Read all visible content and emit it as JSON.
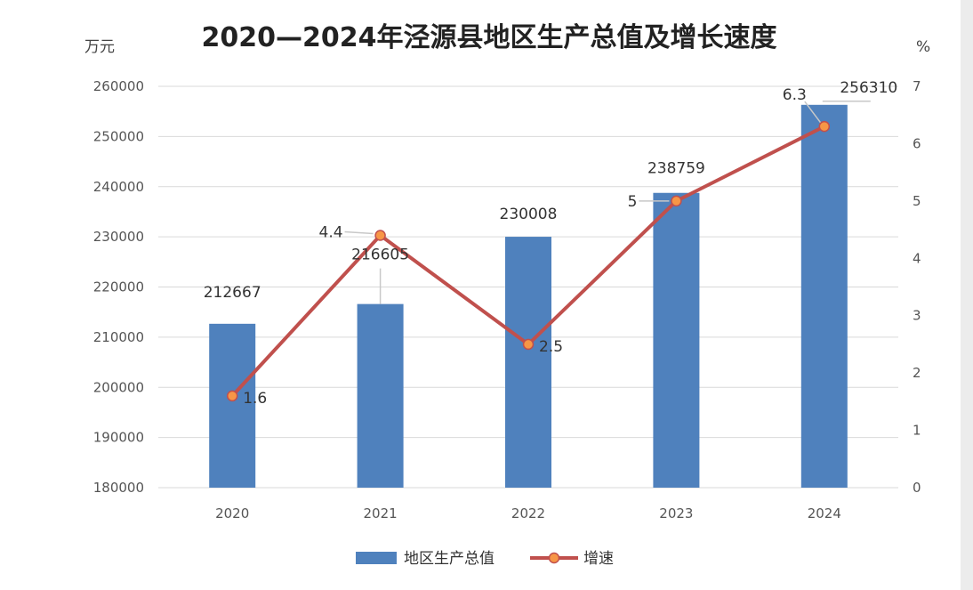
{
  "title": "2020—2024年泾源县地区生产总值及增长速度",
  "chart_data": {
    "type": "bar+line",
    "title": "2020—2024年泾源县地区生产总值及增长速度",
    "categories": [
      "2020",
      "2021",
      "2022",
      "2023",
      "2024"
    ],
    "y_left": {
      "unit": "万元",
      "ylim": [
        180000,
        260000
      ],
      "ticks": [
        "180000",
        "190000",
        "200000",
        "210000",
        "220000",
        "230000",
        "240000",
        "250000",
        "260000"
      ]
    },
    "y_right": {
      "unit": "%",
      "ylim": [
        0,
        7
      ],
      "ticks": [
        "0",
        "1",
        "2",
        "3",
        "4",
        "5",
        "6",
        "7"
      ]
    },
    "series": [
      {
        "name": "地区生产总值",
        "type": "bar",
        "axis": "left",
        "values": [
          212667,
          216605,
          230008,
          238759,
          256310
        ],
        "labels": [
          "212667",
          "216605",
          "230008",
          "238759",
          "256310"
        ]
      },
      {
        "name": "增速",
        "type": "line",
        "axis": "right",
        "values": [
          1.6,
          4.4,
          2.5,
          5,
          6.3
        ],
        "labels": [
          "1.6",
          "4.4",
          "2.5",
          "5",
          "6.3"
        ]
      }
    ],
    "colors": {
      "bar": "#4f81bd",
      "line": "#c0504d",
      "marker": "#f79646",
      "grid": "#d9d9d9"
    },
    "grid": true,
    "legend_position": "bottom"
  }
}
